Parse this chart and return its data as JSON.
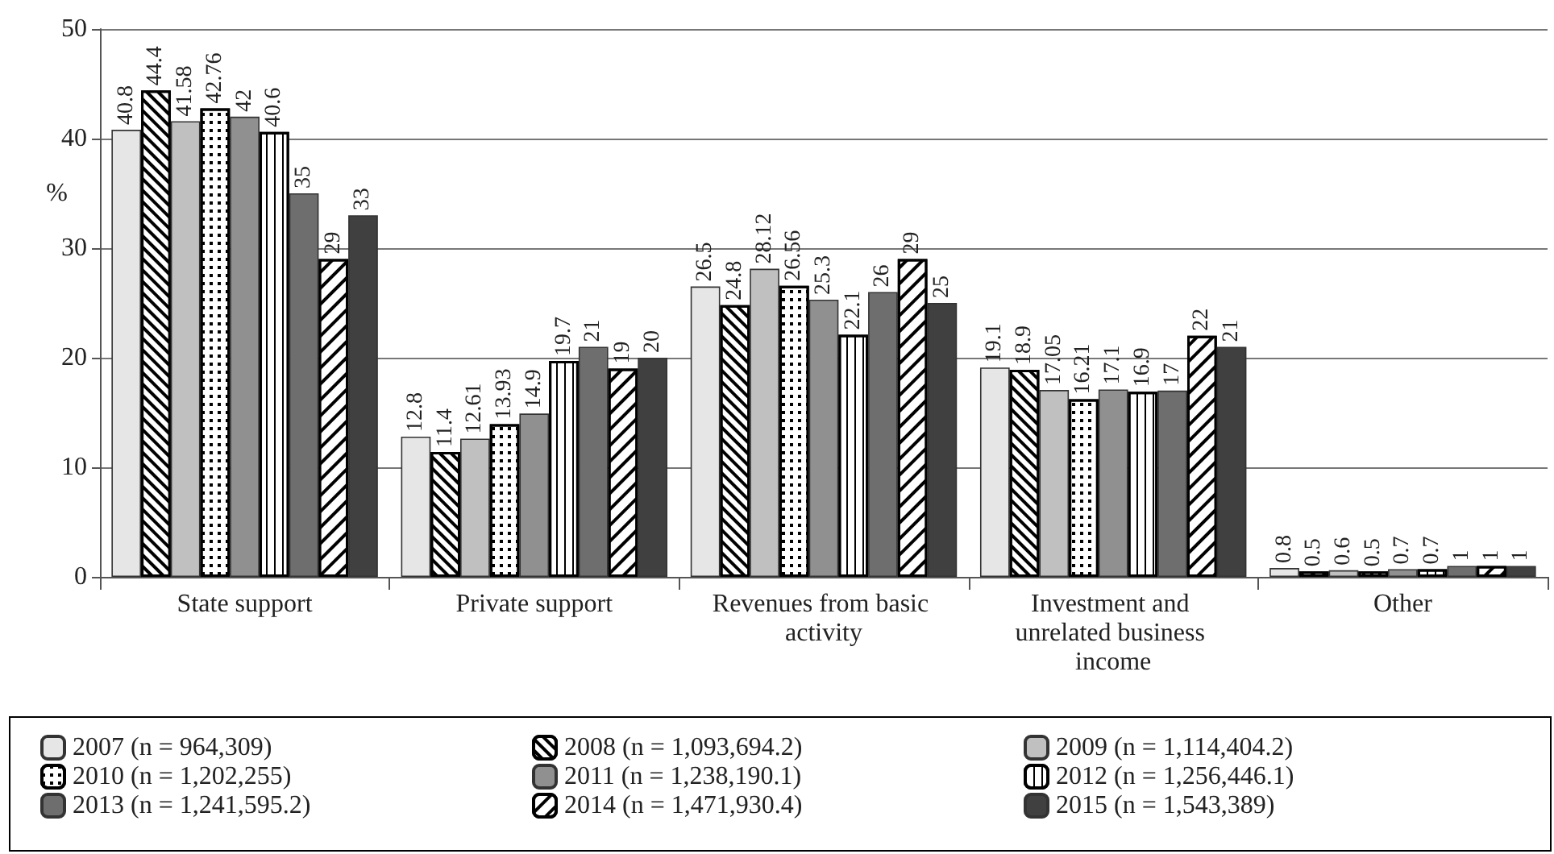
{
  "chart_data": {
    "type": "bar",
    "ylabel": "%",
    "categories": [
      "State support",
      "Private support",
      "Revenues from basic activity",
      "Investment and unrelated business income",
      "Other"
    ],
    "series": [
      {
        "name": "2007 (n = 964,309)",
        "color": "#e6e6e6",
        "values": [
          40.8,
          12.8,
          26.5,
          19.1,
          0.8
        ]
      },
      {
        "name": "2008 (n = 1,093,694.2)",
        "color": "#ffffff",
        "values": [
          44.4,
          11.4,
          24.8,
          18.9,
          0.5
        ]
      },
      {
        "name": "2009 (n = 1,114,404.2)",
        "color": "#c0c0c0",
        "values": [
          41.58,
          12.61,
          28.12,
          17.05,
          0.6
        ]
      },
      {
        "name": "2010 (n = 1,202,255)",
        "color": "#ffffff",
        "values": [
          42.76,
          13.93,
          26.56,
          16.21,
          0.5
        ]
      },
      {
        "name": "2011 (n = 1,238,190.1)",
        "color": "#909090",
        "values": [
          42,
          14.9,
          25.3,
          17.1,
          0.7
        ]
      },
      {
        "name": "2012 (n = 1,256,446.1)",
        "color": "#ffffff",
        "values": [
          40.6,
          19.7,
          22.1,
          16.9,
          0.7
        ]
      },
      {
        "name": "2013 (n = 1,241,595.2)",
        "color": "#6e6e6e",
        "values": [
          35,
          21,
          26,
          17,
          1
        ]
      },
      {
        "name": "2014 (n = 1,471,930.4)",
        "color": "#ffffff",
        "values": [
          29,
          19,
          29,
          22,
          1
        ]
      },
      {
        "name": "2015 (n = 1,543,389)",
        "color": "#404040",
        "values": [
          33,
          20,
          25,
          21,
          1
        ]
      }
    ],
    "ylim": [
      0,
      50
    ],
    "yticks": [
      0,
      10,
      20,
      30,
      40,
      50
    ],
    "grid": "y",
    "legend": "bottom",
    "data_labels": true
  }
}
